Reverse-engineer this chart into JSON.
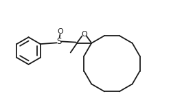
{
  "bg_color": "#ffffff",
  "line_color": "#1a1a1a",
  "line_width": 1.3,
  "fig_width": 2.49,
  "fig_height": 1.53,
  "dpi": 100,
  "xlim": [
    0.2,
    10.2
  ],
  "ylim": [
    0.5,
    6.5
  ]
}
